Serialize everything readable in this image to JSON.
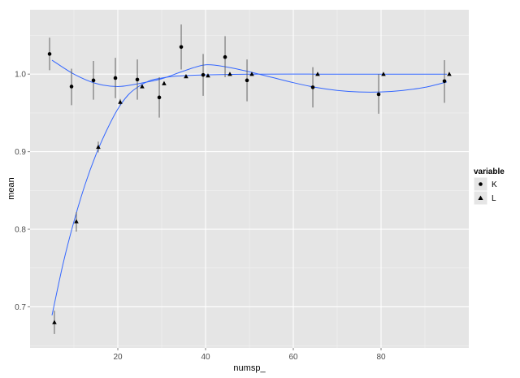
{
  "chart_data": {
    "type": "scatter",
    "xlabel": "numsp_",
    "ylabel": "mean",
    "xlim": [
      0,
      100
    ],
    "ylim": [
      0.647,
      1.083
    ],
    "x_ticks": [
      20,
      40,
      60,
      80
    ],
    "x_tick_labels": [
      "20",
      "40",
      "60",
      "80"
    ],
    "y_ticks": [
      0.7,
      0.8,
      0.9,
      1.0
    ],
    "y_tick_labels": [
      "0.7",
      "0.8",
      "0.9",
      "1.0"
    ],
    "grid": true,
    "legend": {
      "title": "variable",
      "position": "right",
      "entries": [
        {
          "label": "K",
          "shape": "circle"
        },
        {
          "label": "L",
          "shape": "triangle"
        }
      ]
    },
    "series": [
      {
        "name": "K",
        "shape": "circle",
        "points": [
          {
            "x": 5,
            "y": 1.026,
            "ymin": 1.005,
            "ymax": 1.047
          },
          {
            "x": 10,
            "y": 0.984,
            "ymin": 0.96,
            "ymax": 1.007
          },
          {
            "x": 15,
            "y": 0.992,
            "ymin": 0.967,
            "ymax": 1.017
          },
          {
            "x": 20,
            "y": 0.995,
            "ymin": 0.969,
            "ymax": 1.021
          },
          {
            "x": 25,
            "y": 0.993,
            "ymin": 0.967,
            "ymax": 1.019
          },
          {
            "x": 30,
            "y": 0.97,
            "ymin": 0.944,
            "ymax": 0.996
          },
          {
            "x": 35,
            "y": 1.035,
            "ymin": 1.006,
            "ymax": 1.064
          },
          {
            "x": 40,
            "y": 0.999,
            "ymin": 0.972,
            "ymax": 1.026
          },
          {
            "x": 45,
            "y": 1.022,
            "ymin": 0.996,
            "ymax": 1.049
          },
          {
            "x": 50,
            "y": 0.992,
            "ymin": 0.965,
            "ymax": 1.019
          },
          {
            "x": 65,
            "y": 0.983,
            "ymin": 0.957,
            "ymax": 1.009
          },
          {
            "x": 80,
            "y": 0.974,
            "ymin": 0.949,
            "ymax": 1.0
          },
          {
            "x": 95,
            "y": 0.991,
            "ymin": 0.963,
            "ymax": 1.018
          }
        ],
        "smooth": [
          [
            5,
            1.018
          ],
          [
            10,
            1.0
          ],
          [
            15,
            0.988
          ],
          [
            20,
            0.984
          ],
          [
            25,
            0.988
          ],
          [
            30,
            0.994
          ],
          [
            35,
            1.004
          ],
          [
            40,
            1.012
          ],
          [
            45,
            1.009
          ],
          [
            50,
            1.003
          ],
          [
            55,
            0.996
          ],
          [
            60,
            0.989
          ],
          [
            65,
            0.983
          ],
          [
            70,
            0.979
          ],
          [
            75,
            0.977
          ],
          [
            80,
            0.977
          ],
          [
            85,
            0.979
          ],
          [
            90,
            0.983
          ],
          [
            95,
            0.99
          ]
        ]
      },
      {
        "name": "L",
        "shape": "triangle",
        "points": [
          {
            "x": 5,
            "y": 0.68,
            "ymin": 0.665,
            "ymax": 0.695
          },
          {
            "x": 10,
            "y": 0.81,
            "ymin": 0.797,
            "ymax": 0.822
          },
          {
            "x": 15,
            "y": 0.906,
            "ymin": 0.899,
            "ymax": 0.913
          },
          {
            "x": 20,
            "y": 0.964,
            "ymin": 0.96,
            "ymax": 0.968
          },
          {
            "x": 25,
            "y": 0.984,
            "ymin": 0.982,
            "ymax": 0.986
          },
          {
            "x": 30,
            "y": 0.988,
            "ymin": 0.987,
            "ymax": 0.99
          },
          {
            "x": 35,
            "y": 0.997,
            "ymin": 0.996,
            "ymax": 0.998
          },
          {
            "x": 40,
            "y": 0.998,
            "ymin": 0.997,
            "ymax": 0.999
          },
          {
            "x": 45,
            "y": 1.0,
            "ymin": 0.999,
            "ymax": 1.001
          },
          {
            "x": 50,
            "y": 1.0,
            "ymin": 0.999,
            "ymax": 1.001
          },
          {
            "x": 65,
            "y": 1.0,
            "ymin": 0.999,
            "ymax": 1.001
          },
          {
            "x": 80,
            "y": 1.0,
            "ymin": 0.999,
            "ymax": 1.001
          },
          {
            "x": 95,
            "y": 1.0,
            "ymin": 0.999,
            "ymax": 1.001
          }
        ],
        "smooth": [
          [
            5,
            0.689
          ],
          [
            7.5,
            0.755
          ],
          [
            10,
            0.81
          ],
          [
            12.5,
            0.857
          ],
          [
            15,
            0.896
          ],
          [
            17.5,
            0.928
          ],
          [
            20,
            0.955
          ],
          [
            22.5,
            0.974
          ],
          [
            25,
            0.985
          ],
          [
            27.5,
            0.992
          ],
          [
            30,
            0.995
          ],
          [
            32.5,
            0.997
          ],
          [
            35,
            0.998
          ],
          [
            40,
            0.999
          ],
          [
            50,
            1.0
          ],
          [
            65,
            1.0
          ],
          [
            80,
            1.0
          ],
          [
            95,
            1.0
          ]
        ]
      }
    ],
    "colors": {
      "panel_bg": "#e5e5e5",
      "grid_major": "#ffffff",
      "grid_minor": "#f2f2f2",
      "smooth_line": "#3366ff",
      "point": "#000000",
      "errorbar": "#555555",
      "legend_key_bg": "#e5e5e5"
    }
  }
}
